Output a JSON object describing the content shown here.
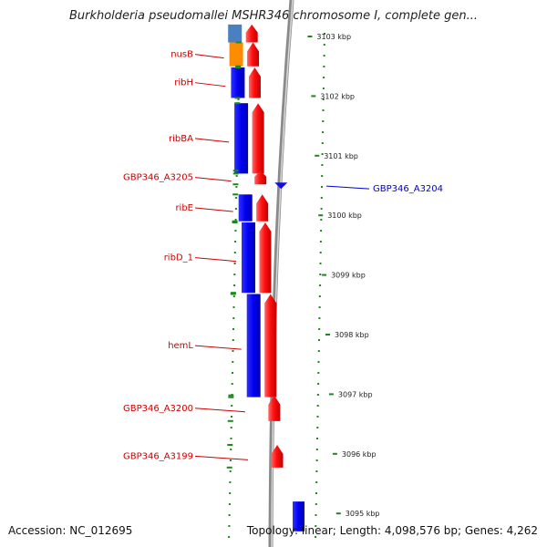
{
  "title": "Burkholderia pseudomallei MSHR346 chromosome I, complete gen...",
  "footer": {
    "accession": "Accession: NC_012695",
    "summary": "Topology: linear; Length: 4,098,576 bp; Genes: 4,262"
  },
  "scale": {
    "unit": "kbp",
    "ticks": [
      {
        "value": 3103,
        "label": "3103 kbp"
      },
      {
        "value": 3102,
        "label": "3102 kbp"
      },
      {
        "value": 3101,
        "label": "3101 kbp"
      },
      {
        "value": 3100,
        "label": "3100 kbp"
      },
      {
        "value": 3099,
        "label": "3099 kbp"
      },
      {
        "value": 3098,
        "label": "3098 kbp"
      },
      {
        "value": 3097,
        "label": "3097 kbp"
      },
      {
        "value": 3096,
        "label": "3096 kbp"
      },
      {
        "value": 3095,
        "label": "3095 kbp"
      }
    ]
  },
  "genes": [
    {
      "name": "nusB",
      "start": 3102.5,
      "end": 3102.9,
      "strand": "minus",
      "color": "#ff8c00",
      "labeled": true
    },
    {
      "name": "ribH",
      "start": 3101.97,
      "end": 3102.48,
      "strand": "minus",
      "color": "#0000ee",
      "labeled": true
    },
    {
      "name": "ribBA",
      "start": 3100.7,
      "end": 3101.88,
      "strand": "minus",
      "color": "#0000ee",
      "labeled": true
    },
    {
      "name": "GBP346_A3205",
      "start": 3100.52,
      "end": 3100.75,
      "strand": "minus",
      "color": "#ee0000",
      "labeled": true
    },
    {
      "name": "GBP346_A3204",
      "start": 3100.43,
      "end": 3100.55,
      "strand": "plus",
      "color": "#0000ee",
      "labeled": true
    },
    {
      "name": "ribE",
      "start": 3099.9,
      "end": 3100.35,
      "strand": "minus",
      "color": "#0000ee",
      "labeled": true
    },
    {
      "name": "ribD_1",
      "start": 3098.7,
      "end": 3099.88,
      "strand": "minus",
      "color": "#0000ee",
      "labeled": true
    },
    {
      "name": "hemL",
      "start": 3096.95,
      "end": 3098.68,
      "strand": "minus",
      "color": "#0000ee",
      "labeled": true
    },
    {
      "name": "GBP346_A3200",
      "start": 3096.55,
      "end": 3096.98,
      "strand": "minus",
      "color": "#ee0000",
      "labeled": true
    },
    {
      "name": "GBP346_A3199",
      "start": 3095.77,
      "end": 3096.15,
      "strand": "minus",
      "color": "#ee0000",
      "labeled": true
    },
    {
      "name": "",
      "start": 3102.9,
      "end": 3103.2,
      "strand": "minus",
      "color": "#4a7fc0",
      "labeled": false
    },
    {
      "name": "",
      "start": 3094.7,
      "end": 3095.2,
      "strand": "plus",
      "color": "#0000ee",
      "labeled": false
    }
  ]
}
